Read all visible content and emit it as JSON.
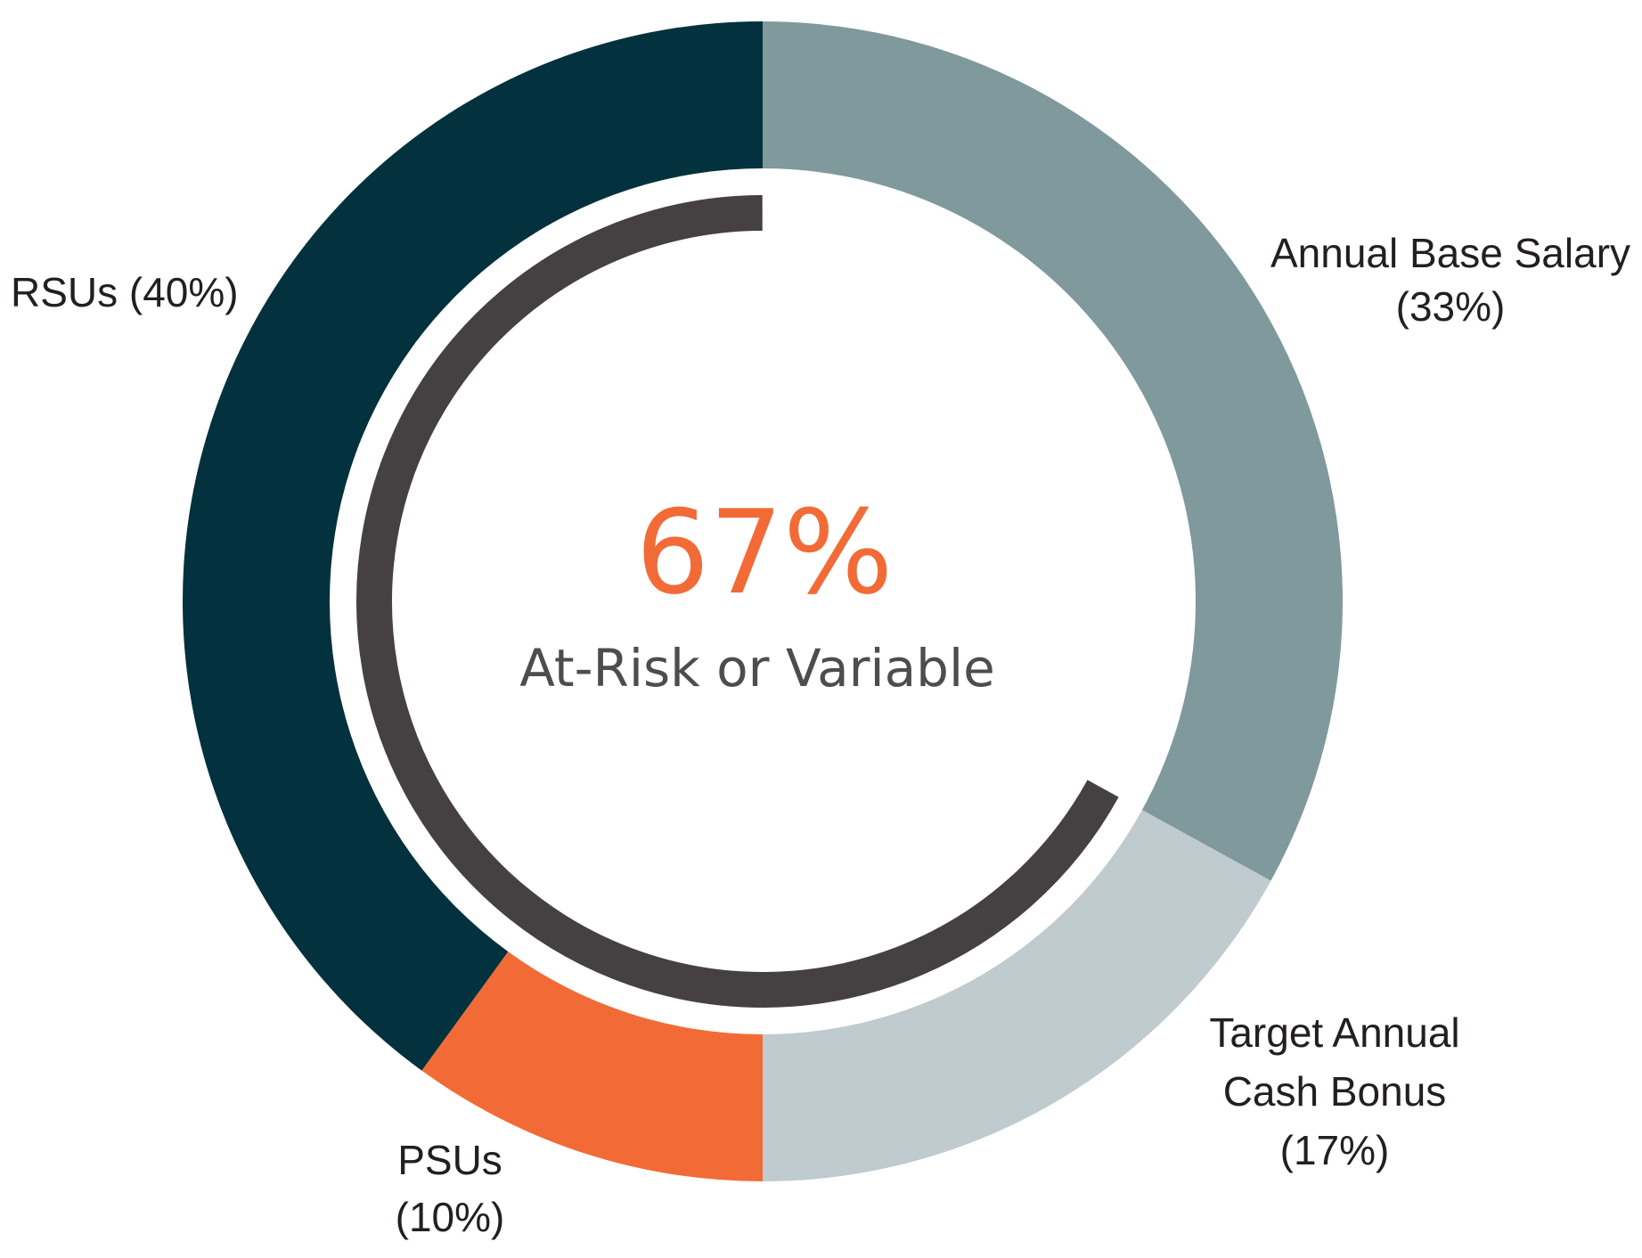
{
  "chart_data": {
    "type": "pie",
    "style": "donut",
    "title": "",
    "categories": [
      "Annual Base Salary",
      "Target Annual Cash Bonus",
      "PSUs",
      "RSUs"
    ],
    "values": [
      33,
      17,
      10,
      40
    ],
    "colors": [
      "#80999d",
      "#bfcbce",
      "#f26b37",
      "#03313d"
    ],
    "labels": [
      {
        "lines": [
          "Annual Base Salary",
          "(33%)"
        ]
      },
      {
        "lines": [
          "Target Annual",
          "Cash Bonus",
          "(17%)"
        ]
      },
      {
        "lines": [
          "PSUs",
          "(10%)"
        ]
      },
      {
        "lines": [
          "RSUs (40%)"
        ]
      }
    ],
    "at_risk_arc": {
      "value": 67,
      "color": "#454041"
    },
    "center": {
      "value_label": "67%",
      "caption": "At-Risk or Variable",
      "value_color": "#f26b37",
      "caption_color": "#4d4d4f"
    }
  }
}
